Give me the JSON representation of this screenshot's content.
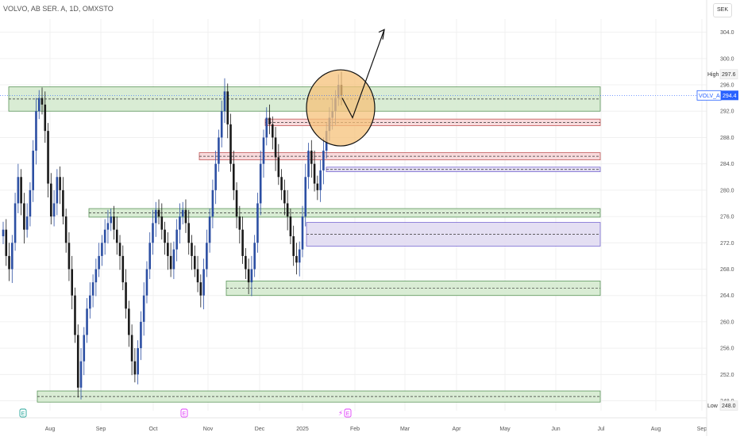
{
  "header": {
    "symbol_title": "VOLVO, AB SER. A, 1D, OMXSTO",
    "currency": "SEK"
  },
  "price_labels": {
    "high_label": "High",
    "high_value": "297.6",
    "current_ticker": "VOLV_A",
    "current_value": "294.4",
    "low_label": "Low",
    "low_value": "248.0"
  },
  "colors": {
    "candle_up": "#2c4fa3",
    "candle_down": "#1a1a1a",
    "zone_green": "#d5ebd0",
    "zone_red": "#f8d7d9",
    "zone_purple": "#e2dcf2",
    "circle_fill": "#f6c27a",
    "current_price": "#2962ff"
  },
  "event_markers": [
    {
      "label": "E",
      "color": "#26a69a"
    },
    {
      "label": "E",
      "color": "#e040fb"
    },
    {
      "label": "E",
      "color": "#e040fb"
    }
  ],
  "chart_data": {
    "type": "candlestick",
    "title": "VOLVO, AB SER. A, 1D, OMXSTO",
    "y_ticks": [
      248.0,
      252.0,
      256.0,
      260.0,
      264.0,
      268.0,
      272.0,
      276.0,
      280.0,
      284.0,
      288.0,
      292.0,
      296.0,
      300.0,
      304.0
    ],
    "x_ticks": [
      "Aug",
      "Sep",
      "Oct",
      "Nov",
      "Dec",
      "2025",
      "Feb",
      "Mar",
      "Apr",
      "May",
      "Jun",
      "Jul",
      "Aug",
      "Sep"
    ],
    "ylim": [
      246.5,
      306.0
    ],
    "series": [
      {
        "name": "price",
        "values": [
          274,
          270,
          268,
          272,
          278,
          282,
          278,
          274,
          276,
          280,
          286,
          292,
          294,
          293,
          289,
          281,
          276,
          278,
          282,
          280,
          276,
          272,
          268,
          264,
          258,
          250,
          254,
          258,
          262,
          264,
          266,
          268,
          270,
          272,
          274,
          275,
          276,
          274,
          272,
          270,
          266,
          262,
          258,
          254,
          252,
          256,
          260,
          264,
          268,
          272,
          275,
          277,
          276,
          274,
          272,
          270,
          268,
          271,
          274,
          276,
          277,
          275,
          272,
          270,
          268,
          266,
          264,
          268,
          272,
          276,
          280,
          284,
          288,
          292,
          295,
          290,
          284,
          280,
          276,
          274,
          270,
          268,
          266,
          268,
          272,
          278,
          284,
          288,
          291,
          290,
          288,
          285,
          282,
          280,
          278,
          276,
          273,
          270,
          269,
          271,
          276,
          282,
          286,
          284,
          281,
          280,
          283,
          286,
          289,
          291,
          292,
          294,
          296,
          294.4
        ]
      }
    ],
    "zones": [
      {
        "color": "green",
        "top": 295.7,
        "bottom": 292.0
      },
      {
        "color": "red",
        "top": 290.8,
        "bottom": 289.8
      },
      {
        "color": "red",
        "top": 285.7,
        "bottom": 284.6
      },
      {
        "color": "purple",
        "top": 283.5,
        "bottom": 282.8
      },
      {
        "color": "green",
        "top": 277.2,
        "bottom": 275.9
      },
      {
        "color": "purple",
        "top": 275.1,
        "bottom": 271.5
      },
      {
        "color": "green",
        "top": 266.2,
        "bottom": 264.0
      },
      {
        "color": "green",
        "top": 249.5,
        "bottom": 247.8
      }
    ],
    "current_price": 294.4,
    "high": 297.6,
    "low": 248.0
  }
}
